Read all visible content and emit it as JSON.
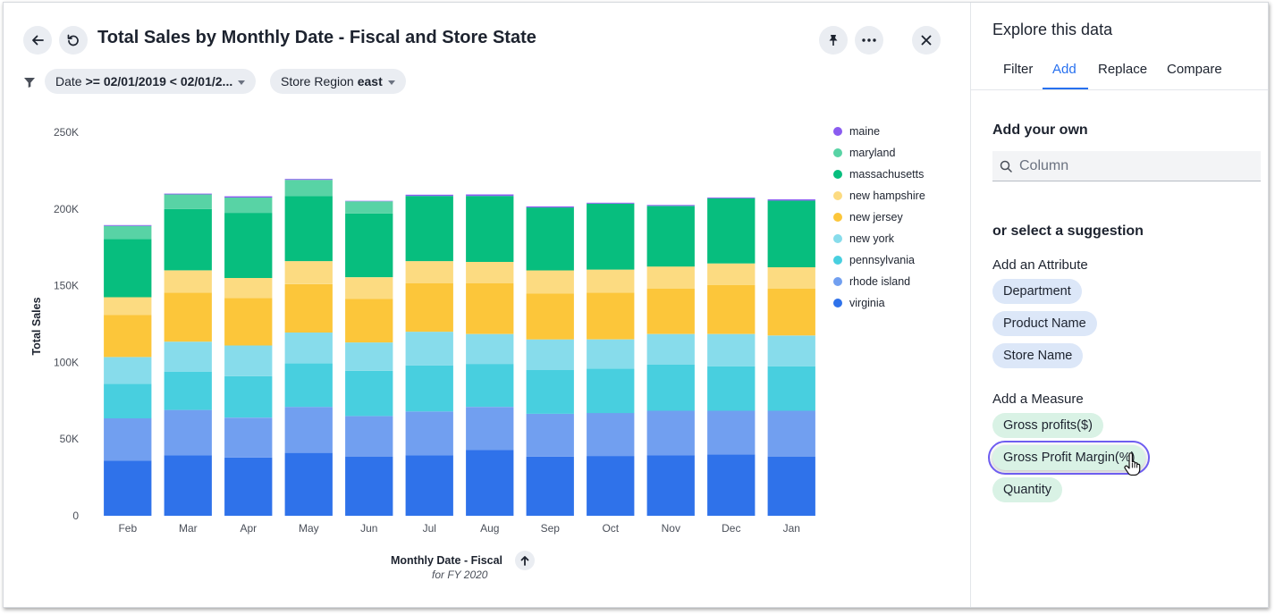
{
  "header": {
    "title": "Total Sales by Monthly Date - Fiscal and Store State",
    "back_icon": "arrow-left-icon",
    "undo_icon": "undo-icon",
    "pin_icon": "pin-icon",
    "more_icon": "more-horizontal-icon",
    "close_icon": "close-icon"
  },
  "filters": [
    {
      "label": "Date",
      "value": ">= 02/01/2019 < 02/01/2..."
    },
    {
      "label": "Store Region",
      "value": "east"
    }
  ],
  "chart_data": {
    "type": "bar",
    "stacked": true,
    "categories": [
      "Feb",
      "Mar",
      "Apr",
      "May",
      "Jun",
      "Jul",
      "Aug",
      "Sep",
      "Oct",
      "Nov",
      "Dec",
      "Jan"
    ],
    "xlabel": "Monthly Date - Fiscal",
    "xlabel_sub": "for FY 2020",
    "ylabel": "Total Sales",
    "ylim": [
      0,
      250000
    ],
    "yticks": [
      {
        "value": 0,
        "label": "0"
      },
      {
        "value": 50000,
        "label": "50K"
      },
      {
        "value": 100000,
        "label": "100K"
      },
      {
        "value": 150000,
        "label": "150K"
      },
      {
        "value": 200000,
        "label": "200K"
      },
      {
        "value": 250000,
        "label": "250K"
      }
    ],
    "legend_position": "right",
    "series": [
      {
        "name": "virginia",
        "color": "#2f72ea",
        "values": [
          36000,
          39500,
          38000,
          41000,
          38500,
          39500,
          43000,
          38500,
          39000,
          39500,
          40000,
          38500
        ]
      },
      {
        "name": "rhode island",
        "color": "#719ff0",
        "values": [
          27500,
          29500,
          26000,
          30000,
          26500,
          28500,
          28000,
          28000,
          28000,
          29000,
          28500,
          30000
        ]
      },
      {
        "name": "pennsylvania",
        "color": "#48cfdf",
        "values": [
          22500,
          25000,
          27000,
          28500,
          29500,
          30000,
          28000,
          28500,
          29000,
          30000,
          29000,
          29000
        ]
      },
      {
        "name": "new york",
        "color": "#87dceb",
        "values": [
          17500,
          19500,
          20000,
          20000,
          18500,
          22000,
          19500,
          20000,
          19000,
          20000,
          21000,
          20000
        ]
      },
      {
        "name": "new jersey",
        "color": "#fcc63a",
        "values": [
          27500,
          32000,
          31000,
          31500,
          28500,
          31500,
          33000,
          30000,
          30500,
          29500,
          32000,
          30500
        ]
      },
      {
        "name": "new hampshire",
        "color": "#fcdb81",
        "values": [
          11500,
          14500,
          13000,
          15000,
          14000,
          14500,
          14000,
          15000,
          15000,
          14500,
          14000,
          14000
        ]
      },
      {
        "name": "massachusetts",
        "color": "#07be7e",
        "values": [
          38000,
          40000,
          42500,
          42500,
          41500,
          42500,
          43000,
          41000,
          43000,
          39500,
          42500,
          43500
        ]
      },
      {
        "name": "maryland",
        "color": "#58d3a5",
        "values": [
          8500,
          9500,
          10000,
          10500,
          8000,
          0,
          0,
          0,
          0,
          0,
          0,
          0
        ]
      },
      {
        "name": "maine",
        "color": "#8a5cf0",
        "values": [
          500,
          500,
          800,
          600,
          300,
          800,
          1000,
          700,
          600,
          600,
          500,
          800
        ]
      }
    ]
  },
  "panel": {
    "title": "Explore this data",
    "tabs": [
      "Filter",
      "Add",
      "Replace",
      "Compare"
    ],
    "active_tab": "Add",
    "add_own_title": "Add your own",
    "search_placeholder": "Column",
    "suggestion_title": "or select a suggestion",
    "attribute_title": "Add an Attribute",
    "attributes": [
      "Department",
      "Product Name",
      "Store Name"
    ],
    "measure_title": "Add a Measure",
    "measures": [
      "Gross profits($)",
      "Gross Profit Margin(%)",
      "Quantity"
    ]
  }
}
